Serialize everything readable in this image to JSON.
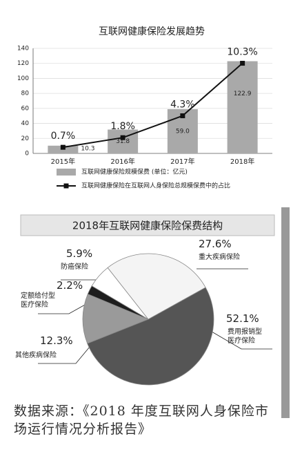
{
  "chart_data": [
    {
      "type": "bar-line",
      "title": "互联网健康保险发展趋势",
      "categories": [
        "2015年",
        "2016年",
        "2017年",
        "2018年"
      ],
      "series": [
        {
          "name": "互联网健康保险规模保费 (单位：亿元)",
          "type": "bar",
          "color": "#a9a9a9",
          "values": [
            10.3,
            31.8,
            59.0,
            122.9
          ],
          "value_labels": [
            "10.3",
            "31.8",
            "59.0",
            "122.9"
          ]
        },
        {
          "name": "互联网健康保险在互联网人身保险总规模保费中的占比",
          "type": "line",
          "axis": "y2",
          "color": "#111111",
          "values": [
            0.7,
            1.8,
            4.3,
            10.3
          ],
          "value_labels": [
            "0.7%",
            "1.8%",
            "4.3%",
            "10.3%"
          ]
        }
      ],
      "ylim": [
        0,
        140
      ],
      "yticks": [
        0,
        20,
        40,
        60,
        80,
        100,
        120,
        140
      ],
      "y2lim": [
        0,
        12
      ],
      "grid": true
    },
    {
      "type": "pie",
      "title": "2018年互联网健康保险保费结构",
      "categories": [
        "费用报销型\n医疗保险",
        "其他疾病保险",
        "定额给付型\n医疗保险",
        "防癌保险",
        "重大疾病保险"
      ],
      "values": [
        52.1,
        12.3,
        2.2,
        5.9,
        27.6
      ],
      "value_labels": [
        "52.1%",
        "12.3%",
        "2.2%",
        "5.9%",
        "27.6%"
      ],
      "colors": [
        "#555555",
        "#9a9a9a",
        "#1e1e1e",
        "#ffffff",
        "#f4f4f4"
      ]
    }
  ],
  "source": "数据来源：《2018 年度互联网人身保险市场运行情况分析报告》"
}
